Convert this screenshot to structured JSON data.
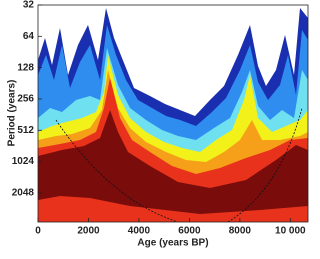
{
  "chart_data": {
    "type": "wavelet-contour",
    "x_label": "Age (years BP)",
    "y_label": "Period (years)",
    "xlim": [
      0,
      10700
    ],
    "xticks": [
      0,
      2000,
      4000,
      6000,
      8000,
      {
        "value": 10000,
        "label": "10 000"
      }
    ],
    "ylim": [
      3900,
      32
    ],
    "log_y": true,
    "yticks": [
      32,
      64,
      128,
      256,
      512,
      1024,
      2048
    ]
  }
}
